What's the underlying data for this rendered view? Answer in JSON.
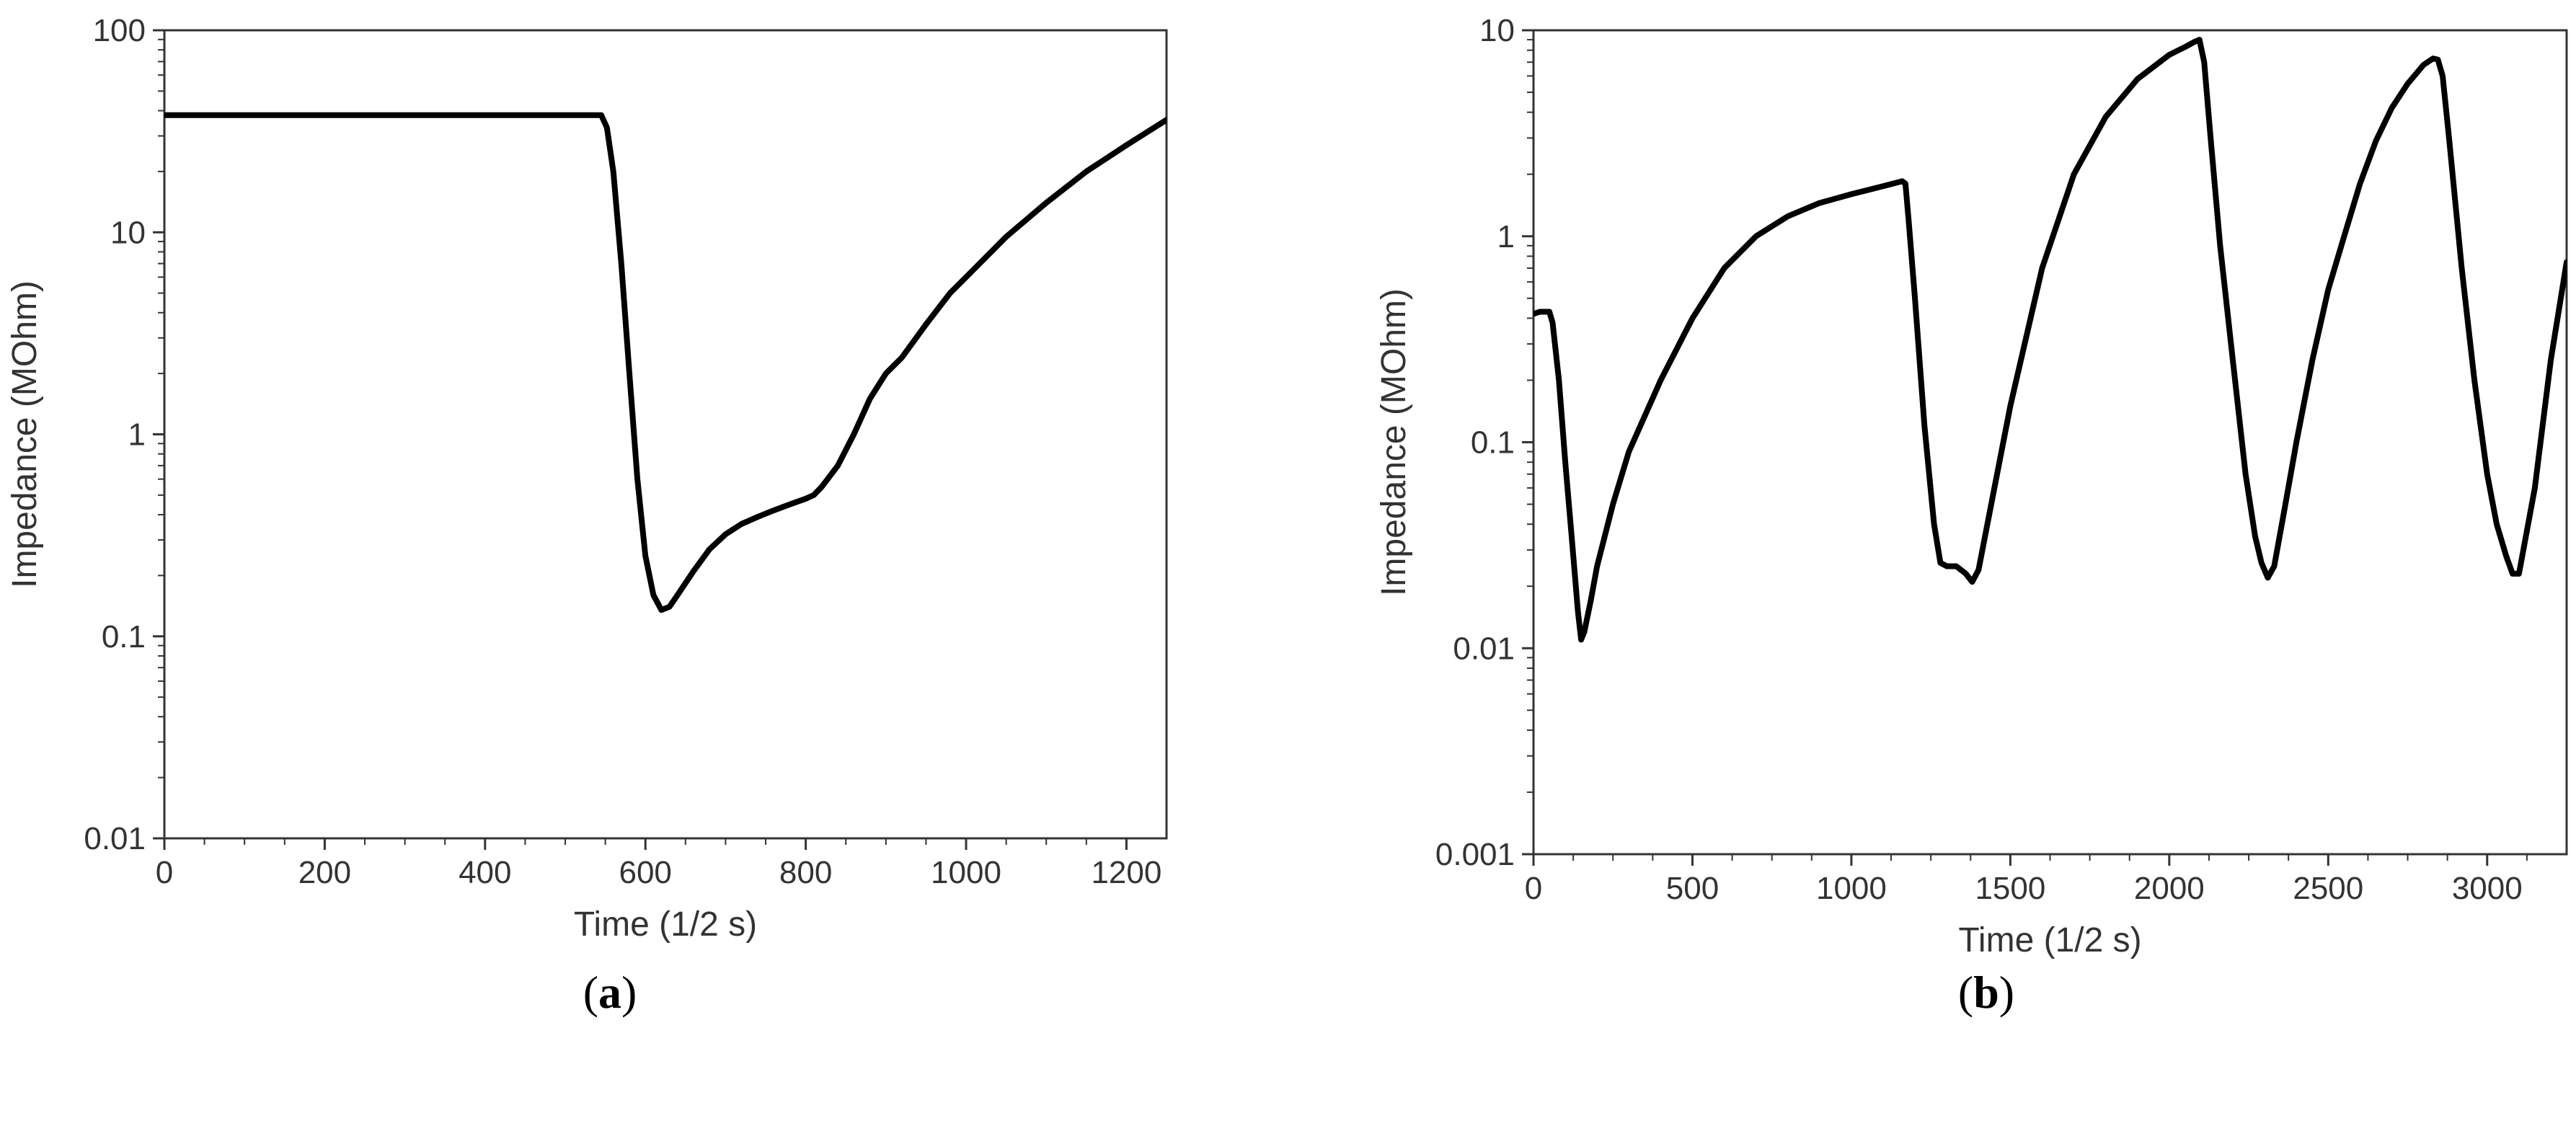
{
  "chart_data": [
    {
      "type": "line",
      "panel": "a",
      "xlabel": "Time (1/2 s)",
      "ylabel": "Impedance (MOhm)",
      "xlim": [
        0,
        1250
      ],
      "ylim": [
        0.01,
        100
      ],
      "yscale": "log",
      "xticks": [
        0,
        200,
        400,
        600,
        800,
        1000,
        1200
      ],
      "xtick_labels": [
        "0",
        "200",
        "400",
        "600",
        "800",
        "1000",
        "1200"
      ],
      "yticks": [
        0.01,
        0.1,
        1,
        10,
        100
      ],
      "ytick_labels": [
        "0.01",
        "0.1",
        "1",
        "10",
        "100"
      ],
      "grid": false,
      "series": [
        {
          "color": "#000000",
          "x": [
            0,
            100,
            200,
            300,
            400,
            500,
            545,
            552,
            560,
            570,
            580,
            590,
            600,
            610,
            620,
            630,
            640,
            660,
            680,
            700,
            720,
            740,
            760,
            780,
            800,
            810,
            820,
            840,
            860,
            880,
            900,
            920,
            950,
            980,
            1000,
            1050,
            1100,
            1150,
            1200,
            1250
          ],
          "y": [
            38,
            38,
            38,
            38,
            38,
            38,
            38,
            33,
            20,
            7,
            2.0,
            0.6,
            0.25,
            0.16,
            0.135,
            0.14,
            0.16,
            0.21,
            0.27,
            0.32,
            0.36,
            0.39,
            0.42,
            0.45,
            0.48,
            0.5,
            0.55,
            0.7,
            1.0,
            1.5,
            2.0,
            2.4,
            3.5,
            5.0,
            6.0,
            9.5,
            14,
            20,
            27,
            36
          ]
        }
      ]
    },
    {
      "type": "line",
      "panel": "b",
      "xlabel": "Time (1/2 s)",
      "ylabel": "Impedance (MOhm)",
      "xlim": [
        0,
        3250
      ],
      "ylim": [
        0.001,
        10
      ],
      "yscale": "log",
      "xticks": [
        0,
        500,
        1000,
        1500,
        2000,
        2500,
        3000
      ],
      "xtick_labels": [
        "0",
        "500",
        "1000",
        "1500",
        "2000",
        "2500",
        "3000"
      ],
      "yticks": [
        0.001,
        0.01,
        0.1,
        1,
        10
      ],
      "ytick_labels": [
        "0.001",
        "0.01",
        "0.1",
        "1",
        "10"
      ],
      "grid": false,
      "series": [
        {
          "color": "#000000",
          "x": [
            0,
            20,
            50,
            60,
            80,
            100,
            120,
            140,
            150,
            160,
            180,
            200,
            250,
            300,
            400,
            500,
            600,
            700,
            800,
            900,
            1000,
            1100,
            1160,
            1170,
            1180,
            1200,
            1230,
            1260,
            1280,
            1300,
            1330,
            1360,
            1380,
            1400,
            1450,
            1500,
            1600,
            1700,
            1800,
            1900,
            2000,
            2050,
            2080,
            2095,
            2110,
            2130,
            2160,
            2200,
            2240,
            2270,
            2290,
            2310,
            2330,
            2360,
            2400,
            2450,
            2500,
            2550,
            2600,
            2650,
            2700,
            2750,
            2800,
            2830,
            2845,
            2860,
            2880,
            2920,
            2960,
            3000,
            3030,
            3060,
            3080,
            3100,
            3150,
            3200,
            3250
          ],
          "y": [
            0.42,
            0.43,
            0.43,
            0.38,
            0.2,
            0.08,
            0.035,
            0.015,
            0.011,
            0.012,
            0.017,
            0.025,
            0.05,
            0.09,
            0.2,
            0.4,
            0.7,
            1.0,
            1.25,
            1.45,
            1.6,
            1.75,
            1.85,
            1.8,
            1.2,
            0.5,
            0.12,
            0.04,
            0.026,
            0.025,
            0.025,
            0.023,
            0.021,
            0.024,
            0.06,
            0.15,
            0.7,
            2.0,
            3.8,
            5.8,
            7.6,
            8.3,
            8.8,
            9.0,
            7.0,
            3.0,
            0.9,
            0.25,
            0.07,
            0.035,
            0.026,
            0.022,
            0.025,
            0.045,
            0.1,
            0.25,
            0.55,
            1.0,
            1.8,
            2.9,
            4.2,
            5.5,
            6.8,
            7.3,
            7.2,
            6.0,
            3.0,
            0.7,
            0.2,
            0.07,
            0.04,
            0.028,
            0.023,
            0.023,
            0.06,
            0.25,
            0.75
          ]
        }
      ]
    }
  ],
  "captions": [
    {
      "letter": "a",
      "open": "(",
      "close": ")"
    },
    {
      "letter": "b",
      "open": "(",
      "close": ")"
    }
  ]
}
